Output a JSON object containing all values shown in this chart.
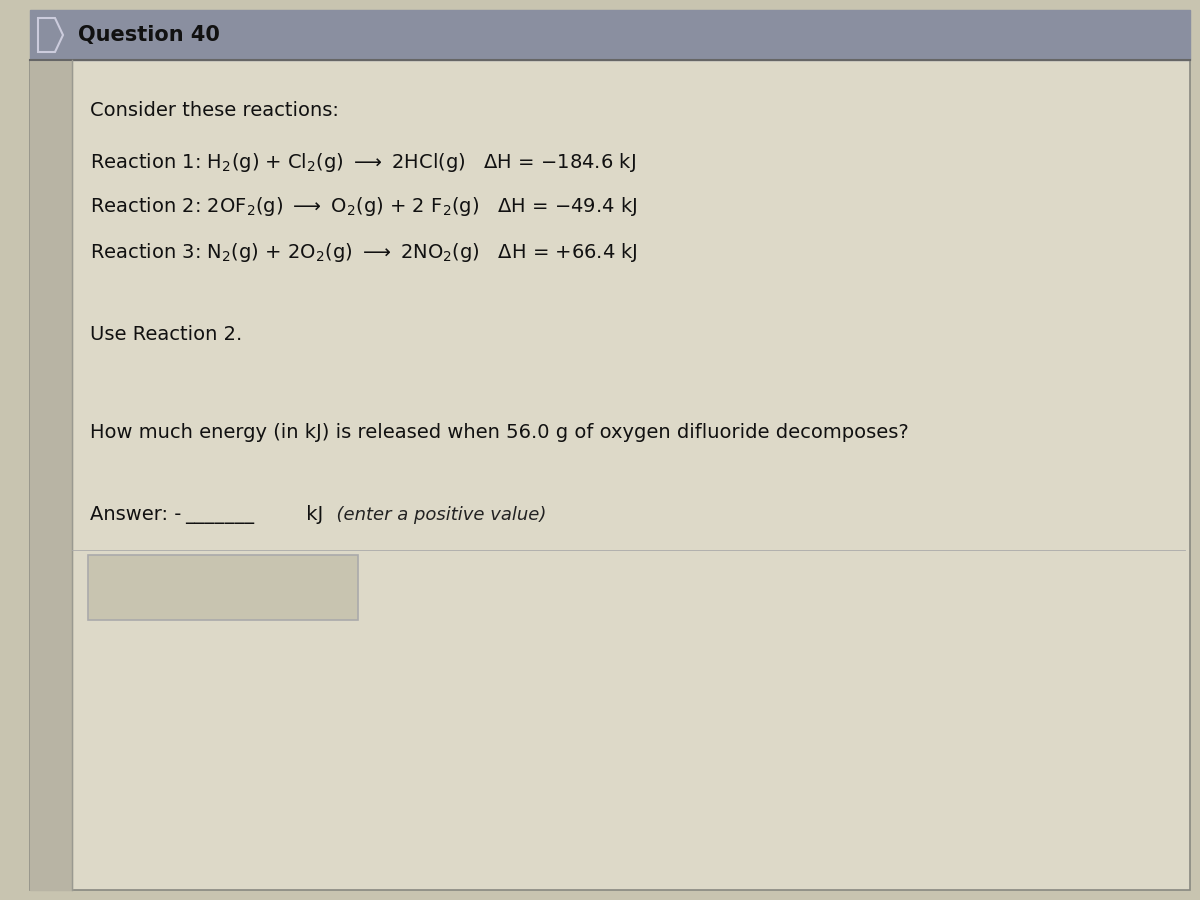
{
  "title": "Question 40",
  "header_bg": "#8a8fa0",
  "card_bg": "#c8c4b0",
  "content_bg": "#ddd9c8",
  "title_color": "#111111",
  "title_fontsize": 15,
  "content_fontsize": 14,
  "consider_text": "Consider these reactions:",
  "reaction1": "Reaction 1: H$_2$(g) + Cl$_2$(g) $\\longrightarrow$ 2HCl(g)   $\\Delta$H = $-$184.6 kJ",
  "reaction2": "Reaction 2: 2OF$_2$(g) $\\longrightarrow$ O$_2$(g) + 2 F$_2$(g)   $\\Delta$H = $-$49.4 kJ",
  "reaction3": "Reaction 3: N$_2$(g) + 2O$_2$(g) $\\longrightarrow$ 2NO$_2$(g)   $\\Delta$H = +66.4 kJ",
  "use_reaction_text": "Use Reaction 2.",
  "question_text": "How much energy (in kJ) is released when 56.0 g of oxygen difluoride decomposes?",
  "answer_label": "Answer: -",
  "answer_blank": "_______",
  "answer_unit": " kJ",
  "answer_note": "  (enter a positive value)",
  "outer_border_color": "#888880",
  "left_bar_color": "#b8b4a4",
  "divider_color": "#aaaaaa",
  "answer_box_bg": "#c8c4b0",
  "answer_box_border": "#aaaaaa",
  "header_text_color": "#111111"
}
